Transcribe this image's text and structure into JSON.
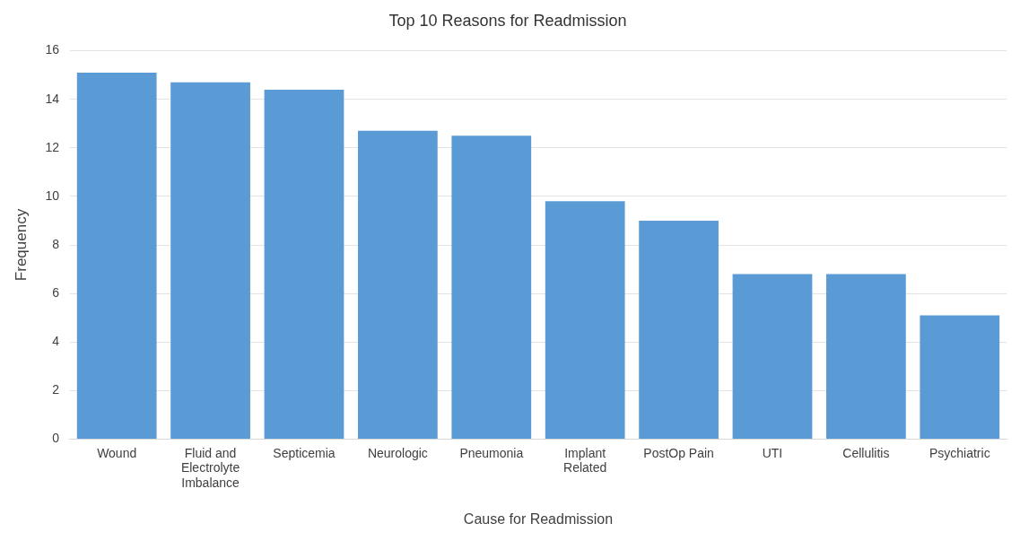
{
  "chart_data": {
    "type": "bar",
    "title": "Top 10 Reasons for Readmission",
    "xlabel": "Cause for Readmission",
    "ylabel": "Frequency",
    "categories": [
      "Wound",
      "Fluid and Electrolyte Imbalance",
      "Septicemia",
      "Neurologic",
      "Pneumonia",
      "Implant Related",
      "PostOp Pain",
      "UTI",
      "Cellulitis",
      "Psychiatric"
    ],
    "values": [
      15.1,
      14.7,
      14.4,
      12.7,
      12.5,
      9.8,
      9.0,
      6.8,
      6.8,
      5.1
    ],
    "color": "#5b9bd5",
    "ylim": [
      0,
      16
    ],
    "yticks": [
      0,
      2,
      4,
      6,
      8,
      10,
      12,
      14,
      16
    ],
    "grid": "y",
    "legend": false
  }
}
